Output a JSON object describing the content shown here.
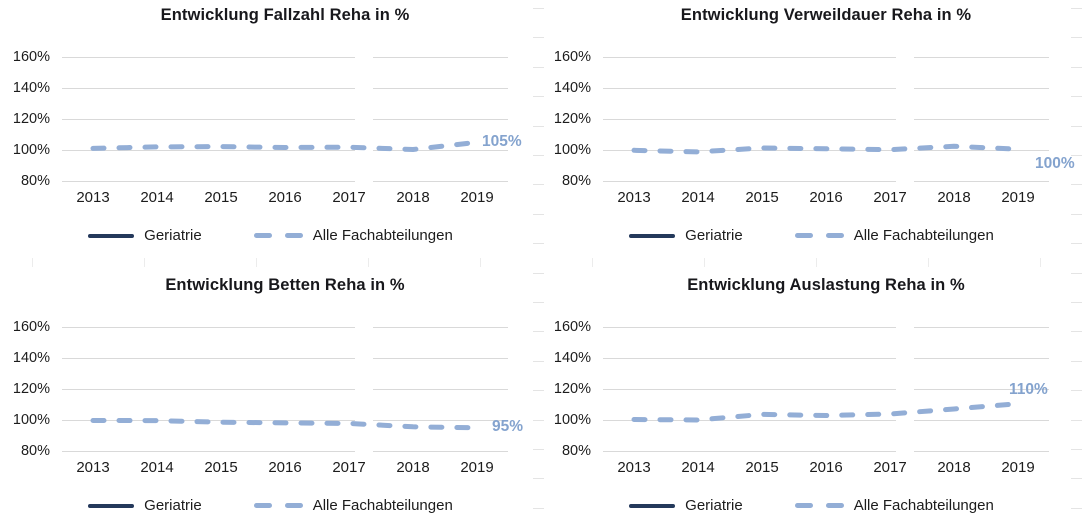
{
  "colors": {
    "series_dashed": "#93aed6",
    "series_solid": "#24395b",
    "end_label": "#84a3ce",
    "gridline": "#d9d9d9",
    "axis_text": "#1c1c1c"
  },
  "legend": {
    "items": [
      {
        "name": "Geriatrie",
        "style": "solid"
      },
      {
        "name": "Alle Fachabteilungen",
        "style": "dashed"
      }
    ],
    "position": "bottom"
  },
  "chart_data": [
    {
      "type": "line",
      "title": "Entwicklung Fallzahl Reha in %",
      "x": [
        "2013",
        "2014",
        "2015",
        "2016",
        "2017",
        "2018",
        "2019"
      ],
      "y_ticks": [
        "160%",
        "140%",
        "120%",
        "100%",
        "80%"
      ],
      "y_tick_values": [
        160,
        140,
        120,
        100,
        80
      ],
      "ylim": [
        80,
        170
      ],
      "grid": true,
      "end_label": "105%",
      "series": [
        {
          "name": "Geriatrie",
          "style": "solid",
          "values": []
        },
        {
          "name": "Alle Fachabteilungen",
          "style": "dashed",
          "values": [
            101,
            102,
            102.2,
            101.6,
            101.8,
            100.3,
            105
          ]
        }
      ]
    },
    {
      "type": "line",
      "title": "Entwicklung Verweildauer Reha in %",
      "x": [
        "2013",
        "2014",
        "2015",
        "2016",
        "2017",
        "2018",
        "2019"
      ],
      "y_ticks": [
        "160%",
        "140%",
        "120%",
        "100%",
        "80%"
      ],
      "y_tick_values": [
        160,
        140,
        120,
        100,
        80
      ],
      "ylim": [
        80,
        170
      ],
      "grid": true,
      "end_label": "100%",
      "series": [
        {
          "name": "Geriatrie",
          "style": "solid",
          "values": []
        },
        {
          "name": "Alle Fachabteilungen",
          "style": "dashed",
          "values": [
            99.8,
            98.8,
            101.3,
            100.8,
            100.2,
            102.4,
            100.5
          ]
        }
      ]
    },
    {
      "type": "line",
      "title": "Entwicklung Betten Reha in %",
      "x": [
        "2013",
        "2014",
        "2015",
        "2016",
        "2017",
        "2018",
        "2019"
      ],
      "y_ticks": [
        "160%",
        "140%",
        "120%",
        "100%",
        "80%"
      ],
      "y_tick_values": [
        160,
        140,
        120,
        100,
        80
      ],
      "ylim": [
        80,
        170
      ],
      "grid": true,
      "end_label": "95%",
      "series": [
        {
          "name": "Geriatrie",
          "style": "solid",
          "values": []
        },
        {
          "name": "Alle Fachabteilungen",
          "style": "dashed",
          "values": [
            99.7,
            99.6,
            98.6,
            98.1,
            97.8,
            95.6,
            95
          ]
        }
      ]
    },
    {
      "type": "line",
      "title": "Entwicklung Auslastung Reha in %",
      "x": [
        "2013",
        "2014",
        "2015",
        "2016",
        "2017",
        "2018",
        "2019"
      ],
      "y_ticks": [
        "160%",
        "140%",
        "120%",
        "100%",
        "80%"
      ],
      "y_tick_values": [
        160,
        140,
        120,
        100,
        80
      ],
      "ylim": [
        80,
        170
      ],
      "grid": true,
      "end_label": "110%",
      "series": [
        {
          "name": "Geriatrie",
          "style": "solid",
          "values": []
        },
        {
          "name": "Alle Fachabteilungen",
          "style": "dashed",
          "values": [
            100.3,
            100,
            103.6,
            102.9,
            103.9,
            107.1,
            110.5
          ]
        }
      ]
    }
  ]
}
